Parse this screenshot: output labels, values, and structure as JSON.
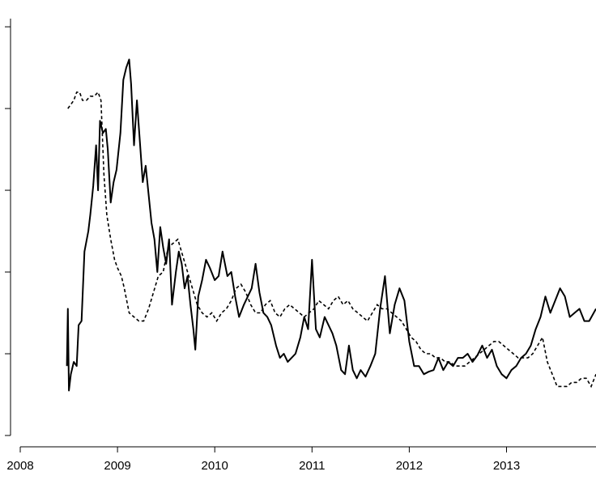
{
  "chart_data": {
    "type": "line",
    "title": "",
    "xlabel": "",
    "ylabel": "",
    "x_ticks": [
      "2008",
      "2009",
      "2010",
      "2011",
      "2012",
      "2013"
    ],
    "xlim": [
      2008.0,
      2013.92
    ],
    "ylim": [
      0,
      5.1
    ],
    "y_tick_values": [
      0,
      1,
      2,
      3,
      4,
      5
    ],
    "y_tick_labels_shown": false,
    "grid": false,
    "legend": "none",
    "series": [
      {
        "style": "solid",
        "x": [
          2008.48,
          2008.49,
          2008.5,
          2008.52,
          2008.55,
          2008.58,
          2008.6,
          2008.63,
          2008.66,
          2008.7,
          2008.72,
          2008.75,
          2008.78,
          2008.8,
          2008.82,
          2008.85,
          2008.88,
          2008.9,
          2008.93,
          2008.96,
          2008.99,
          2009.03,
          2009.06,
          2009.09,
          2009.12,
          2009.14,
          2009.17,
          2009.2,
          2009.23,
          2009.26,
          2009.29,
          2009.32,
          2009.35,
          2009.38,
          2009.41,
          2009.44,
          2009.47,
          2009.5,
          2009.53,
          2009.56,
          2009.6,
          2009.63,
          2009.66,
          2009.69,
          2009.72,
          2009.75,
          2009.78,
          2009.8,
          2009.83,
          2009.87,
          2009.91,
          2009.95,
          2010.0,
          2010.04,
          2010.08,
          2010.13,
          2010.17,
          2010.21,
          2010.25,
          2010.3,
          2010.34,
          2010.38,
          2010.42,
          2010.46,
          2010.5,
          2010.54,
          2010.58,
          2010.63,
          2010.67,
          2010.71,
          2010.75,
          2010.79,
          2010.83,
          2010.88,
          2010.92,
          2010.96,
          2011.0,
          2011.04,
          2011.08,
          2011.13,
          2011.17,
          2011.21,
          2011.25,
          2011.3,
          2011.34,
          2011.38,
          2011.42,
          2011.46,
          2011.5,
          2011.55,
          2011.6,
          2011.65,
          2011.7,
          2011.75,
          2011.8,
          2011.85,
          2011.9,
          2011.95,
          2012.0,
          2012.05,
          2012.1,
          2012.15,
          2012.2,
          2012.25,
          2012.3,
          2012.35,
          2012.4,
          2012.45,
          2012.5,
          2012.55,
          2012.6,
          2012.65,
          2012.7,
          2012.75,
          2012.8,
          2012.85,
          2012.9,
          2012.95,
          2013.0,
          2013.05,
          2013.1,
          2013.15,
          2013.2,
          2013.25,
          2013.3,
          2013.35,
          2013.4,
          2013.45,
          2013.5,
          2013.55,
          2013.6,
          2013.65,
          2013.7,
          2013.75,
          2013.8,
          2013.85,
          2013.92
        ],
        "y": [
          0.85,
          1.55,
          0.55,
          0.75,
          0.9,
          0.85,
          1.35,
          1.4,
          2.25,
          2.5,
          2.7,
          3.05,
          3.55,
          3.0,
          3.85,
          3.7,
          3.75,
          3.5,
          2.85,
          3.1,
          3.25,
          3.7,
          4.35,
          4.5,
          4.6,
          4.3,
          3.55,
          4.1,
          3.6,
          3.1,
          3.3,
          2.95,
          2.6,
          2.4,
          2.0,
          2.55,
          2.3,
          2.1,
          2.4,
          1.6,
          2.0,
          2.25,
          2.1,
          1.8,
          1.95,
          1.6,
          1.3,
          1.05,
          1.7,
          1.9,
          2.15,
          2.05,
          1.9,
          1.95,
          2.25,
          1.95,
          2.0,
          1.7,
          1.45,
          1.6,
          1.7,
          1.8,
          2.1,
          1.75,
          1.5,
          1.45,
          1.35,
          1.1,
          0.95,
          1.0,
          0.9,
          0.95,
          1.0,
          1.2,
          1.45,
          1.3,
          2.15,
          1.3,
          1.2,
          1.45,
          1.35,
          1.25,
          1.1,
          0.8,
          0.75,
          1.1,
          0.8,
          0.7,
          0.8,
          0.72,
          0.85,
          1.0,
          1.55,
          1.95,
          1.25,
          1.6,
          1.8,
          1.65,
          1.15,
          0.85,
          0.85,
          0.75,
          0.78,
          0.8,
          0.95,
          0.8,
          0.9,
          0.85,
          0.95,
          0.95,
          1.0,
          0.9,
          0.98,
          1.1,
          0.95,
          1.05,
          0.85,
          0.75,
          0.7,
          0.8,
          0.85,
          0.95,
          1.0,
          1.1,
          1.3,
          1.45,
          1.7,
          1.5,
          1.65,
          1.8,
          1.7,
          1.45,
          1.5,
          1.55,
          1.4,
          1.4,
          1.55
        ]
      },
      {
        "style": "dashed",
        "x": [
          2008.49,
          2008.52,
          2008.55,
          2008.58,
          2008.61,
          2008.64,
          2008.68,
          2008.72,
          2008.76,
          2008.8,
          2008.83,
          2008.86,
          2008.89,
          2008.91,
          2008.93,
          2008.97,
          2009.0,
          2009.04,
          2009.07,
          2009.12,
          2009.17,
          2009.22,
          2009.27,
          2009.32,
          2009.37,
          2009.42,
          2009.47,
          2009.52,
          2009.57,
          2009.62,
          2009.67,
          2009.72,
          2009.77,
          2009.82,
          2009.87,
          2009.92,
          2009.97,
          2010.02,
          2010.07,
          2010.12,
          2010.17,
          2010.22,
          2010.27,
          2010.32,
          2010.37,
          2010.42,
          2010.47,
          2010.52,
          2010.57,
          2010.62,
          2010.67,
          2010.72,
          2010.77,
          2010.82,
          2010.87,
          2010.92,
          2010.97,
          2011.02,
          2011.07,
          2011.12,
          2011.17,
          2011.22,
          2011.27,
          2011.32,
          2011.37,
          2011.42,
          2011.47,
          2011.52,
          2011.57,
          2011.62,
          2011.67,
          2011.72,
          2011.77,
          2011.82,
          2011.87,
          2011.92,
          2011.97,
          2012.02,
          2012.07,
          2012.12,
          2012.17,
          2012.22,
          2012.27,
          2012.32,
          2012.37,
          2012.42,
          2012.47,
          2012.52,
          2012.57,
          2012.62,
          2012.67,
          2012.72,
          2012.77,
          2012.82,
          2012.87,
          2012.92,
          2012.97,
          2013.02,
          2013.07,
          2013.12,
          2013.17,
          2013.22,
          2013.27,
          2013.32,
          2013.37,
          2013.42,
          2013.47,
          2013.52,
          2013.57,
          2013.62,
          2013.67,
          2013.72,
          2013.77,
          2013.82,
          2013.87,
          2013.92
        ],
        "y": [
          4.0,
          4.05,
          4.1,
          4.2,
          4.2,
          4.1,
          4.1,
          4.15,
          4.15,
          4.2,
          4.1,
          3.2,
          2.7,
          2.55,
          2.4,
          2.15,
          2.05,
          1.95,
          1.8,
          1.5,
          1.45,
          1.4,
          1.4,
          1.55,
          1.75,
          1.95,
          2.0,
          2.3,
          2.35,
          2.4,
          2.2,
          2.0,
          1.8,
          1.6,
          1.5,
          1.45,
          1.5,
          1.4,
          1.5,
          1.55,
          1.65,
          1.8,
          1.85,
          1.75,
          1.6,
          1.5,
          1.5,
          1.6,
          1.65,
          1.5,
          1.45,
          1.55,
          1.6,
          1.55,
          1.5,
          1.45,
          1.5,
          1.55,
          1.65,
          1.6,
          1.55,
          1.65,
          1.7,
          1.6,
          1.65,
          1.55,
          1.5,
          1.45,
          1.4,
          1.5,
          1.6,
          1.55,
          1.55,
          1.5,
          1.45,
          1.4,
          1.3,
          1.2,
          1.15,
          1.05,
          1.0,
          1.0,
          0.95,
          0.95,
          0.9,
          0.9,
          0.85,
          0.85,
          0.85,
          0.9,
          0.95,
          1.0,
          1.05,
          1.1,
          1.15,
          1.15,
          1.1,
          1.05,
          1.0,
          0.95,
          0.95,
          0.95,
          1.0,
          1.1,
          1.2,
          0.9,
          0.75,
          0.6,
          0.6,
          0.6,
          0.65,
          0.65,
          0.7,
          0.7,
          0.6,
          0.75
        ]
      }
    ]
  }
}
